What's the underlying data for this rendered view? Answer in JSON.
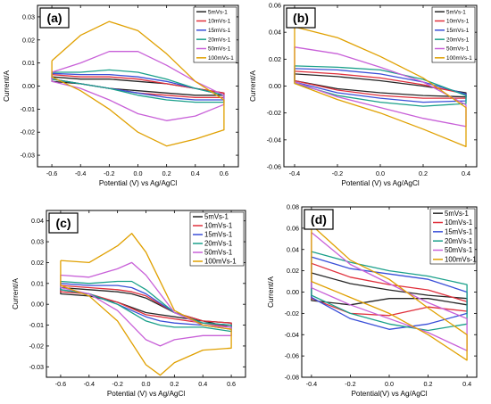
{
  "colors": [
    "#262626",
    "#e0303c",
    "#3a4fd8",
    "#1aa08a",
    "#c860d8",
    "#e0a000"
  ],
  "chart_data": [
    {
      "type": "line",
      "panel_label": "(a)",
      "xlabel": "Potential (V) vs Ag/AgCl",
      "ylabel": "Current/A",
      "xlim": [
        -0.7,
        0.7
      ],
      "ylim": [
        -0.035,
        0.035
      ],
      "xticks": [
        -0.6,
        -0.4,
        -0.2,
        0.0,
        0.2,
        0.4,
        0.6
      ],
      "xtick_labels": [
        "-0.6",
        "-0.4",
        "-0.2",
        "0.0",
        "0.2",
        "0.4",
        "0.6"
      ],
      "yticks": [
        -0.03,
        -0.02,
        -0.01,
        0.0,
        0.01,
        0.02,
        0.03
      ],
      "ytick_labels": [
        "-0.03",
        "-0.02",
        "-0.01",
        "0.00",
        "0.01",
        "0.02",
        "0.03"
      ],
      "legend_position": "top-right",
      "series": [
        {
          "name": "5mVs-1",
          "x": [
            -0.6,
            -0.4,
            -0.2,
            0.0,
            0.2,
            0.4,
            0.6,
            0.6,
            0.4,
            0.2,
            0.0,
            -0.2,
            -0.4,
            -0.6,
            -0.6
          ],
          "y": [
            0.004,
            0.003,
            0.003,
            0.002,
            0.001,
            -0.001,
            -0.003,
            -0.004,
            -0.004,
            -0.003,
            -0.002,
            -0.001,
            0.001,
            0.002,
            0.004
          ]
        },
        {
          "name": "10mVs-1",
          "x": [
            -0.6,
            -0.4,
            -0.2,
            0.0,
            0.2,
            0.4,
            0.6,
            0.6,
            0.4,
            0.2,
            0.0,
            -0.2,
            -0.4,
            -0.6,
            -0.6
          ],
          "y": [
            0.005,
            0.004,
            0.004,
            0.003,
            0.001,
            -0.001,
            -0.003,
            -0.005,
            -0.005,
            -0.004,
            -0.003,
            -0.001,
            0.001,
            0.003,
            0.005
          ]
        },
        {
          "name": "15mVs-1",
          "x": [
            -0.6,
            -0.4,
            -0.2,
            0.0,
            0.2,
            0.4,
            0.6,
            0.6,
            0.4,
            0.2,
            0.0,
            -0.2,
            -0.4,
            -0.6,
            -0.6
          ],
          "y": [
            0.0055,
            0.005,
            0.005,
            0.004,
            0.002,
            -0.001,
            -0.004,
            -0.006,
            -0.006,
            -0.005,
            -0.003,
            -0.001,
            0.001,
            0.003,
            0.0055
          ]
        },
        {
          "name": "20mVs-1",
          "x": [
            -0.6,
            -0.4,
            -0.2,
            0.0,
            0.2,
            0.4,
            0.6,
            0.6,
            0.4,
            0.2,
            0.0,
            -0.2,
            -0.4,
            -0.6,
            -0.6
          ],
          "y": [
            0.006,
            0.006,
            0.007,
            0.006,
            0.003,
            -0.001,
            -0.004,
            -0.007,
            -0.007,
            -0.006,
            -0.004,
            -0.001,
            0.001,
            0.003,
            0.006
          ]
        },
        {
          "name": "50mVs-1",
          "x": [
            -0.6,
            -0.4,
            -0.2,
            0.0,
            0.2,
            0.4,
            0.6,
            0.6,
            0.4,
            0.2,
            0.0,
            -0.2,
            -0.4,
            -0.6,
            -0.6
          ],
          "y": [
            0.006,
            0.01,
            0.015,
            0.015,
            0.009,
            0.002,
            -0.004,
            -0.008,
            -0.013,
            -0.015,
            -0.012,
            -0.006,
            -0.001,
            0.002,
            0.006
          ]
        },
        {
          "name": "100mVs-1",
          "x": [
            -0.6,
            -0.4,
            -0.2,
            0.0,
            0.2,
            0.4,
            0.6,
            0.6,
            0.4,
            0.2,
            0.0,
            -0.2,
            -0.4,
            -0.6,
            -0.6
          ],
          "y": [
            0.011,
            0.022,
            0.028,
            0.024,
            0.014,
            0.002,
            -0.006,
            -0.019,
            -0.023,
            -0.026,
            -0.02,
            -0.01,
            -0.002,
            0.004,
            0.011
          ]
        }
      ]
    },
    {
      "type": "line",
      "panel_label": "(b)",
      "xlabel": "Potential (V) vs Ag/AgCl",
      "ylabel": "Current/A",
      "xlim": [
        -0.45,
        0.45
      ],
      "ylim": [
        -0.06,
        0.06
      ],
      "xticks": [
        -0.4,
        -0.2,
        0.0,
        0.2,
        0.4
      ],
      "xtick_labels": [
        "-0.4",
        "-0.2",
        "0.0",
        "0.2",
        "0.4"
      ],
      "yticks": [
        -0.06,
        -0.04,
        -0.02,
        0.0,
        0.02,
        0.04,
        0.06
      ],
      "ytick_labels": [
        "-0.06",
        "-0.04",
        "-0.02",
        "0.00",
        "0.02",
        "0.04",
        "0.06"
      ],
      "legend_position": "top-right",
      "series": [
        {
          "name": "5mVs-1",
          "x": [
            -0.4,
            -0.2,
            0.0,
            0.2,
            0.4,
            0.4,
            0.2,
            0.0,
            -0.2,
            -0.4,
            -0.4
          ],
          "y": [
            0.009,
            0.007,
            0.004,
            0.0,
            -0.005,
            -0.008,
            -0.007,
            -0.005,
            -0.002,
            0.004,
            0.009
          ]
        },
        {
          "name": "10mVs-1",
          "x": [
            -0.4,
            -0.2,
            0.0,
            0.2,
            0.4,
            0.4,
            0.2,
            0.0,
            -0.2,
            -0.4,
            -0.4
          ],
          "y": [
            0.011,
            0.009,
            0.006,
            0.001,
            -0.006,
            -0.009,
            -0.009,
            -0.007,
            -0.003,
            0.004,
            0.011
          ]
        },
        {
          "name": "15mVs-1",
          "x": [
            -0.4,
            -0.2,
            0.0,
            0.2,
            0.4,
            0.4,
            0.2,
            0.0,
            -0.2,
            -0.4,
            -0.4
          ],
          "y": [
            0.013,
            0.012,
            0.009,
            0.003,
            -0.006,
            -0.011,
            -0.012,
            -0.009,
            -0.005,
            0.003,
            0.013
          ]
        },
        {
          "name": "20mVs-1",
          "x": [
            -0.4,
            -0.2,
            0.0,
            0.2,
            0.4,
            0.4,
            0.2,
            0.0,
            -0.2,
            -0.4,
            -0.4
          ],
          "y": [
            0.015,
            0.014,
            0.012,
            0.005,
            -0.007,
            -0.013,
            -0.015,
            -0.012,
            -0.007,
            0.002,
            0.015
          ]
        },
        {
          "name": "50mVs-1",
          "x": [
            -0.4,
            -0.2,
            0.0,
            0.2,
            0.4,
            0.4,
            0.2,
            0.0,
            -0.2,
            -0.4,
            -0.4
          ],
          "y": [
            0.029,
            0.024,
            0.014,
            0.003,
            -0.014,
            -0.03,
            -0.024,
            -0.016,
            -0.008,
            0.003,
            0.029
          ]
        },
        {
          "name": "100mVs-1",
          "x": [
            -0.4,
            -0.2,
            0.0,
            0.2,
            0.4,
            0.4,
            0.2,
            0.0,
            -0.2,
            -0.4,
            -0.4
          ],
          "y": [
            0.044,
            0.036,
            0.022,
            0.006,
            -0.016,
            -0.045,
            -0.032,
            -0.02,
            -0.01,
            0.002,
            0.044
          ]
        }
      ]
    },
    {
      "type": "line",
      "panel_label": "(c)",
      "xlabel": "Potential (V) vs Ag/AgCl",
      "ylabel": "Current/A",
      "xlim": [
        -0.7,
        0.7
      ],
      "ylim": [
        -0.035,
        0.045
      ],
      "xticks": [
        -0.6,
        -0.4,
        -0.2,
        0.0,
        0.2,
        0.4,
        0.6
      ],
      "xtick_labels": [
        "-0.6",
        "-0.4",
        "-0.2",
        "0.0",
        "0.2",
        "0.4",
        "0.6"
      ],
      "yticks": [
        -0.03,
        -0.02,
        -0.01,
        0.0,
        0.01,
        0.02,
        0.03,
        0.04
      ],
      "ytick_labels": [
        "-0.03",
        "-0.02",
        "-0.01",
        "0.00",
        "0.01",
        "0.02",
        "0.03",
        "0.04"
      ],
      "legend_position": "top-right",
      "series": [
        {
          "name": "5mVs-1",
          "x": [
            -0.6,
            -0.4,
            -0.2,
            -0.1,
            0.0,
            0.2,
            0.4,
            0.6,
            0.6,
            0.4,
            0.2,
            0.1,
            0.0,
            -0.2,
            -0.4,
            -0.6,
            -0.6
          ],
          "y": [
            0.008,
            0.007,
            0.006,
            0.005,
            0.003,
            -0.004,
            -0.008,
            -0.009,
            -0.011,
            -0.008,
            -0.006,
            -0.005,
            -0.004,
            0.001,
            0.004,
            0.005,
            0.008
          ]
        },
        {
          "name": "10mVs-1",
          "x": [
            -0.6,
            -0.4,
            -0.2,
            -0.1,
            0.0,
            0.2,
            0.4,
            0.6,
            0.6,
            0.4,
            0.2,
            0.1,
            0.0,
            -0.2,
            -0.4,
            -0.6,
            -0.6
          ],
          "y": [
            0.009,
            0.008,
            0.007,
            0.006,
            0.004,
            -0.004,
            -0.008,
            -0.009,
            -0.011,
            -0.009,
            -0.007,
            -0.006,
            -0.005,
            0.001,
            0.005,
            0.006,
            0.009
          ]
        },
        {
          "name": "15mVs-1",
          "x": [
            -0.6,
            -0.4,
            -0.2,
            -0.1,
            0.0,
            0.2,
            0.4,
            0.6,
            0.6,
            0.4,
            0.2,
            0.1,
            0.0,
            -0.2,
            -0.4,
            -0.6,
            -0.6
          ],
          "y": [
            0.01,
            0.009,
            0.009,
            0.008,
            0.005,
            -0.004,
            -0.009,
            -0.01,
            -0.012,
            -0.01,
            -0.009,
            -0.008,
            -0.006,
            0.0,
            0.005,
            0.007,
            0.01
          ]
        },
        {
          "name": "20mVs-1",
          "x": [
            -0.6,
            -0.4,
            -0.2,
            -0.1,
            0.0,
            0.2,
            0.4,
            0.6,
            0.6,
            0.4,
            0.2,
            0.1,
            0.0,
            -0.2,
            -0.4,
            -0.6,
            -0.6
          ],
          "y": [
            0.011,
            0.01,
            0.011,
            0.011,
            0.007,
            -0.004,
            -0.009,
            -0.01,
            -0.013,
            -0.011,
            -0.011,
            -0.01,
            -0.008,
            0.0,
            0.005,
            0.007,
            0.011
          ]
        },
        {
          "name": "50mVs-1",
          "x": [
            -0.6,
            -0.4,
            -0.2,
            -0.1,
            0.0,
            0.2,
            0.4,
            0.6,
            0.6,
            0.4,
            0.2,
            0.1,
            0.0,
            -0.2,
            -0.4,
            -0.6,
            -0.6
          ],
          "y": [
            0.014,
            0.013,
            0.017,
            0.02,
            0.014,
            -0.004,
            -0.01,
            -0.011,
            -0.015,
            -0.015,
            -0.017,
            -0.02,
            -0.017,
            -0.003,
            0.005,
            0.008,
            0.014
          ]
        },
        {
          "name": "100mVs-1",
          "x": [
            -0.6,
            -0.4,
            -0.2,
            -0.1,
            0.0,
            0.2,
            0.4,
            0.6,
            0.6,
            0.4,
            0.2,
            0.1,
            0.0,
            -0.2,
            -0.4,
            -0.6,
            -0.6
          ],
          "y": [
            0.021,
            0.02,
            0.028,
            0.034,
            0.025,
            -0.003,
            -0.01,
            -0.012,
            -0.021,
            -0.022,
            -0.028,
            -0.034,
            -0.029,
            -0.008,
            0.004,
            0.009,
            0.021
          ]
        }
      ]
    },
    {
      "type": "line",
      "panel_label": "(d)",
      "xlabel": "Potential(V) vs Ag/AgCl",
      "ylabel": "Current/A",
      "xlim": [
        -0.45,
        0.45
      ],
      "ylim": [
        -0.08,
        0.08
      ],
      "xticks": [
        -0.4,
        -0.2,
        0.0,
        0.2,
        0.4
      ],
      "xtick_labels": [
        "-0.4",
        "-0.2",
        "0.0",
        "0.2",
        "0.4"
      ],
      "yticks": [
        -0.08,
        -0.06,
        -0.04,
        -0.02,
        0.0,
        0.02,
        0.04,
        0.06,
        0.08
      ],
      "ytick_labels": [
        "-0.08",
        "-0.06",
        "-0.04",
        "-0.02",
        "0.00",
        "0.02",
        "0.04",
        "0.06",
        "0.08"
      ],
      "legend_position": "top-right",
      "series": [
        {
          "name": "5mVs-1",
          "x": [
            -0.4,
            -0.2,
            0.0,
            0.2,
            0.4,
            0.4,
            0.2,
            0.0,
            -0.2,
            -0.4,
            -0.4
          ],
          "y": [
            0.018,
            0.008,
            0.002,
            -0.003,
            -0.006,
            -0.012,
            -0.006,
            -0.006,
            -0.012,
            -0.008,
            0.018
          ]
        },
        {
          "name": "10mVs-1",
          "x": [
            -0.4,
            -0.2,
            0.0,
            0.2,
            0.4,
            0.4,
            0.2,
            0.0,
            -0.2,
            -0.4,
            -0.4
          ],
          "y": [
            0.027,
            0.014,
            0.007,
            0.002,
            -0.009,
            -0.018,
            -0.014,
            -0.022,
            -0.02,
            -0.006,
            0.027
          ]
        },
        {
          "name": "15mVs-1",
          "x": [
            -0.4,
            -0.2,
            0.0,
            0.2,
            0.4,
            0.4,
            0.2,
            0.0,
            -0.2,
            -0.4,
            -0.4
          ],
          "y": [
            0.033,
            0.022,
            0.017,
            0.012,
            0.0,
            -0.02,
            -0.03,
            -0.035,
            -0.025,
            -0.005,
            0.033
          ]
        },
        {
          "name": "20mVs-1",
          "x": [
            -0.4,
            -0.2,
            0.0,
            0.2,
            0.4,
            0.4,
            0.2,
            0.0,
            -0.2,
            -0.4,
            -0.4
          ],
          "y": [
            0.038,
            0.028,
            0.02,
            0.015,
            0.007,
            -0.03,
            -0.036,
            -0.03,
            -0.02,
            -0.003,
            0.038
          ]
        },
        {
          "name": "50mVs-1",
          "x": [
            -0.4,
            -0.2,
            0.0,
            0.2,
            0.4,
            0.4,
            0.2,
            0.0,
            -0.2,
            -0.4,
            -0.4
          ],
          "y": [
            0.056,
            0.026,
            0.008,
            -0.01,
            -0.025,
            -0.055,
            -0.038,
            -0.025,
            -0.012,
            0.004,
            0.056
          ]
        },
        {
          "name": "100mVs-1",
          "x": [
            -0.4,
            -0.2,
            0.0,
            0.2,
            0.4,
            0.4,
            0.2,
            0.0,
            -0.2,
            -0.4,
            -0.4
          ],
          "y": [
            0.063,
            0.03,
            0.012,
            -0.015,
            -0.04,
            -0.064,
            -0.04,
            -0.02,
            -0.005,
            0.01,
            0.063
          ]
        }
      ]
    }
  ]
}
